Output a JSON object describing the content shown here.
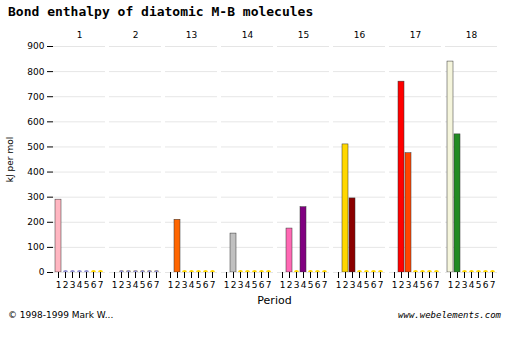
{
  "chart_data": {
    "type": "bar3d",
    "title": "Bond enthalpy of diatomic M-B molecules",
    "x_categories": [
      "1",
      "2",
      "13",
      "14",
      "15",
      "16",
      "17",
      "18"
    ],
    "y_categories": [
      "1",
      "2",
      "3",
      "4",
      "5",
      "6",
      "7"
    ],
    "y_label": "Period",
    "z_label": "kJ per mol",
    "zlim": [
      0,
      900
    ],
    "zticks": [
      0,
      100,
      200,
      300,
      400,
      500,
      600,
      700,
      800,
      900
    ],
    "grid": true,
    "bars": [
      {
        "x": "1",
        "y": "1",
        "value": 290,
        "color": "#FFB6C1"
      },
      {
        "x": "13",
        "y": "2",
        "value": 210,
        "color": "#FF6600"
      },
      {
        "x": "14",
        "y": "2",
        "value": 155,
        "color": "#C0C0C0"
      },
      {
        "x": "15",
        "y": "2",
        "value": 175,
        "color": "#FF69B4"
      },
      {
        "x": "16",
        "y": "2",
        "value": 510,
        "color": "#FFD700"
      },
      {
        "x": "17",
        "y": "2",
        "value": 760,
        "color": "#FF0000"
      },
      {
        "x": "17",
        "y": "3",
        "value": 475,
        "color": "#FF4500"
      },
      {
        "x": "18",
        "y": "2",
        "value": 550,
        "color": "#228B22"
      },
      {
        "x": "15",
        "y": "4",
        "value": 260,
        "color": "#800080"
      },
      {
        "x": "18",
        "y": "1",
        "value": 840,
        "color": "#F5F5DC"
      },
      {
        "x": "16",
        "y": "3",
        "value": 295,
        "color": "#8B0000"
      }
    ],
    "floor_dots": [
      {
        "color": "#FFD700",
        "points": [
          [
            "2",
            "2"
          ],
          [
            "2",
            "3"
          ],
          [
            "2",
            "4"
          ],
          [
            "2",
            "5"
          ],
          [
            "2",
            "6"
          ],
          [
            "13",
            "3"
          ],
          [
            "13",
            "4"
          ],
          [
            "13",
            "5"
          ],
          [
            "13",
            "6"
          ],
          [
            "14",
            "3"
          ],
          [
            "14",
            "4"
          ],
          [
            "14",
            "5"
          ],
          [
            "14",
            "6"
          ],
          [
            "15",
            "3"
          ],
          [
            "15",
            "4"
          ],
          [
            "15",
            "5"
          ],
          [
            "15",
            "6"
          ],
          [
            "16",
            "3"
          ],
          [
            "16",
            "4"
          ],
          [
            "16",
            "5"
          ],
          [
            "16",
            "6"
          ],
          [
            "17",
            "4"
          ],
          [
            "17",
            "5"
          ],
          [
            "17",
            "6"
          ],
          [
            "18",
            "3"
          ],
          [
            "18",
            "4"
          ],
          [
            "18",
            "5"
          ],
          [
            "18",
            "6"
          ],
          [
            "1",
            "6"
          ],
          [
            "1",
            "7"
          ],
          [
            "2",
            "7"
          ],
          [
            "13",
            "7"
          ],
          [
            "14",
            "7"
          ],
          [
            "15",
            "7"
          ],
          [
            "16",
            "7"
          ],
          [
            "17",
            "7"
          ],
          [
            "18",
            "7"
          ]
        ]
      },
      {
        "color": "#9090D0",
        "points": [
          [
            "1",
            "2"
          ],
          [
            "1",
            "3"
          ],
          [
            "1",
            "4"
          ],
          [
            "1",
            "5"
          ],
          [
            "2",
            "2"
          ],
          [
            "2",
            "3"
          ],
          [
            "2",
            "4"
          ],
          [
            "2",
            "5"
          ],
          [
            "2",
            "6"
          ],
          [
            "2",
            "7"
          ]
        ]
      },
      {
        "color": "#E8A0B0",
        "points": [
          [
            "18",
            "1"
          ]
        ]
      }
    ],
    "notes": [
      "www.webelements.com",
      "© 1998-1999 Mark W..."
    ]
  }
}
